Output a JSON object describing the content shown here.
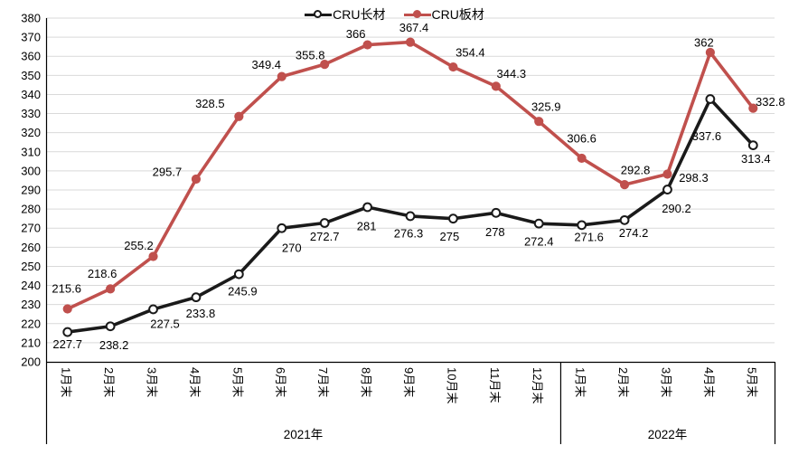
{
  "chart_data": {
    "type": "line",
    "title": "",
    "legend_position": "top",
    "grid": true,
    "background_color": "#ffffff",
    "gridline_color": "#d9d9d9",
    "axis_color": "#000000",
    "label_color": "#000000",
    "y_axis": {
      "min": 200,
      "max": 380,
      "step": 10
    },
    "categories": [
      "1月末",
      "2月末",
      "3月末",
      "4月末",
      "5月末",
      "6月末",
      "7月末",
      "8月末",
      "9月末",
      "10月末",
      "11月末",
      "12月末",
      "1月末",
      "2月末",
      "3月末",
      "4月末",
      "5月末"
    ],
    "year_groups": [
      {
        "label": "2021年",
        "count": 12
      },
      {
        "label": "2022年",
        "count": 5
      }
    ],
    "series": [
      {
        "name": "CRU长材",
        "color": "#1a1a1a",
        "marker": "open-circle",
        "values": [
          215.6,
          218.6,
          227.5,
          233.8,
          245.9,
          270,
          272.7,
          281,
          276.3,
          275,
          278,
          272.4,
          271.6,
          274.2,
          290.2,
          337.6,
          313.4
        ],
        "labels": [
          "215.6",
          "218.6",
          "227.5",
          "233.8",
          "245.9",
          "270",
          "272.7",
          "281",
          "276.3",
          "275",
          "278",
          "272.4",
          "271.6",
          "274.2",
          "290.2",
          "337.6",
          "313.4"
        ],
        "label_offsets": [
          [
            -1,
            -48
          ],
          [
            -9,
            -58
          ],
          [
            13,
            16
          ],
          [
            5,
            18
          ],
          [
            4,
            19
          ],
          [
            11,
            22
          ],
          [
            0,
            15
          ],
          [
            -1,
            21
          ],
          [
            -2,
            19
          ],
          [
            -4,
            20
          ],
          [
            -1,
            21
          ],
          [
            0,
            20
          ],
          [
            8,
            13
          ],
          [
            10,
            14
          ],
          [
            10,
            21
          ],
          [
            -4,
            41
          ],
          [
            3,
            15
          ]
        ]
      },
      {
        "name": "CRU板材",
        "color": "#c0504d",
        "marker": "filled-circle",
        "values": [
          227.7,
          238.2,
          255.2,
          295.7,
          328.5,
          349.4,
          355.8,
          366,
          367.4,
          354.4,
          344.3,
          325.9,
          306.6,
          292.8,
          298.3,
          362,
          332.8
        ],
        "labels": [
          "227.7",
          "238.2",
          "255.2",
          "295.7",
          "328.5",
          "349.4",
          "355.8",
          "366",
          "367.4",
          "354.4",
          "344.3",
          "325.9",
          "306.6",
          "292.8",
          "298.3",
          "362",
          "332.8"
        ],
        "label_offsets": [
          [
            0,
            39
          ],
          [
            4,
            62
          ],
          [
            -16,
            -12
          ],
          [
            -32,
            -8
          ],
          [
            -32,
            -14
          ],
          [
            -17,
            -13
          ],
          [
            -16,
            -10
          ],
          [
            -13,
            -12
          ],
          [
            4,
            -16
          ],
          [
            19,
            -16
          ],
          [
            17,
            -14
          ],
          [
            8,
            -16
          ],
          [
            0,
            -22
          ],
          [
            12,
            -16
          ],
          [
            29,
            4
          ],
          [
            -7,
            -11
          ],
          [
            19,
            -7
          ]
        ]
      }
    ]
  }
}
